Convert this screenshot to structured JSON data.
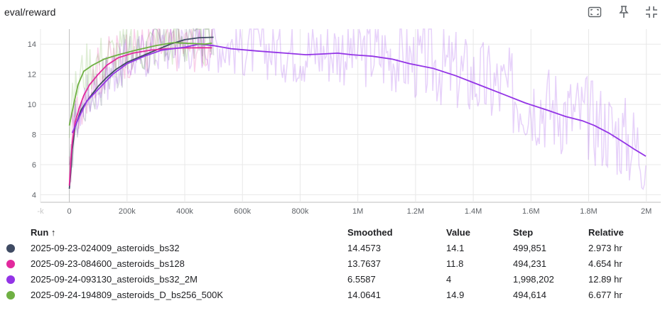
{
  "header": {
    "title": "eval/reward",
    "icons": [
      "fit-domain-icon",
      "pin-icon",
      "collapse-icon"
    ]
  },
  "chart_data": {
    "type": "line",
    "xlim": [
      -100000,
      2050000
    ],
    "ylim": [
      3.5,
      15
    ],
    "x_ticks": [
      -100000,
      0,
      200000,
      400000,
      600000,
      800000,
      1000000,
      1200000,
      1400000,
      1600000,
      1800000,
      2000000
    ],
    "x_tick_labels": [
      "-k",
      "0",
      "200k",
      "400k",
      "600k",
      "800k",
      "1M",
      "1.2M",
      "1.4M",
      "1.6M",
      "1.8M",
      "2M"
    ],
    "y_ticks": [
      4,
      6,
      8,
      10,
      12,
      14
    ],
    "y_tick_labels": [
      "4",
      "6",
      "8",
      "10",
      "12",
      "14"
    ],
    "grid": true,
    "series": [
      {
        "name": "2025-09-23-024009_asteroids_bs32",
        "color": "#3f4b63",
        "smoothed": [
          [
            0,
            4.4
          ],
          [
            5000,
            5.5
          ],
          [
            10000,
            7.0
          ],
          [
            20000,
            8.5
          ],
          [
            40000,
            9.6
          ],
          [
            60000,
            10.2
          ],
          [
            80000,
            10.7
          ],
          [
            100000,
            11.2
          ],
          [
            130000,
            11.8
          ],
          [
            160000,
            12.3
          ],
          [
            200000,
            12.8
          ],
          [
            250000,
            13.2
          ],
          [
            300000,
            13.6
          ],
          [
            350000,
            14.0
          ],
          [
            400000,
            14.3
          ],
          [
            450000,
            14.43
          ],
          [
            499851,
            14.46
          ]
        ]
      },
      {
        "name": "2025-09-23-084600_asteroids_bs128",
        "color": "#e2299d",
        "smoothed": [
          [
            0,
            4.6
          ],
          [
            5000,
            6.2
          ],
          [
            10000,
            7.5
          ],
          [
            20000,
            8.8
          ],
          [
            35000,
            9.8
          ],
          [
            50000,
            10.6
          ],
          [
            70000,
            11.3
          ],
          [
            100000,
            12.0
          ],
          [
            130000,
            12.6
          ],
          [
            170000,
            13.1
          ],
          [
            220000,
            13.4
          ],
          [
            280000,
            13.6
          ],
          [
            340000,
            13.7
          ],
          [
            400000,
            13.75
          ],
          [
            450000,
            13.76
          ],
          [
            494231,
            13.76
          ]
        ]
      },
      {
        "name": "2025-09-24-093130_asteroids_bs32_2M",
        "color": "#9334e6",
        "smoothed": [
          [
            10000,
            8.1
          ],
          [
            30000,
            9.0
          ],
          [
            60000,
            10.2
          ],
          [
            100000,
            11.0
          ],
          [
            150000,
            12.0
          ],
          [
            200000,
            12.7
          ],
          [
            260000,
            13.2
          ],
          [
            320000,
            13.6
          ],
          [
            400000,
            13.8
          ],
          [
            450000,
            14.0
          ],
          [
            500000,
            13.9
          ],
          [
            560000,
            13.7
          ],
          [
            650000,
            13.55
          ],
          [
            750000,
            13.4
          ],
          [
            820000,
            13.3
          ],
          [
            880000,
            13.35
          ],
          [
            930000,
            13.4
          ],
          [
            980000,
            13.3
          ],
          [
            1050000,
            13.2
          ],
          [
            1120000,
            13.0
          ],
          [
            1180000,
            12.7
          ],
          [
            1260000,
            12.4
          ],
          [
            1340000,
            11.9
          ],
          [
            1420000,
            11.3
          ],
          [
            1500000,
            10.7
          ],
          [
            1580000,
            10.1
          ],
          [
            1660000,
            9.6
          ],
          [
            1720000,
            9.2
          ],
          [
            1780000,
            8.9
          ],
          [
            1820000,
            8.6
          ],
          [
            1870000,
            8.1
          ],
          [
            1920000,
            7.5
          ],
          [
            1960000,
            7.0
          ],
          [
            1998202,
            6.56
          ]
        ]
      },
      {
        "name": "2025-09-24-194809_asteroids_D_bs256_500K",
        "color": "#6fb043",
        "smoothed": [
          [
            0,
            8.6
          ],
          [
            15000,
            10.0
          ],
          [
            30000,
            11.3
          ],
          [
            50000,
            12.2
          ],
          [
            80000,
            12.6
          ],
          [
            120000,
            13.0
          ],
          [
            170000,
            13.3
          ],
          [
            230000,
            13.6
          ],
          [
            300000,
            13.9
          ],
          [
            360000,
            14.1
          ],
          [
            420000,
            14.05
          ],
          [
            470000,
            14.0
          ],
          [
            494614,
            14.06
          ]
        ]
      }
    ]
  },
  "table": {
    "headers": {
      "run": "Run",
      "sort_glyph": "↑",
      "smoothed": "Smoothed",
      "value": "Value",
      "step": "Step",
      "relative": "Relative"
    },
    "rows": [
      {
        "run": "2025-09-23-024009_asteroids_bs32",
        "smoothed": "14.4573",
        "value": "14.1",
        "step": "499,851",
        "relative": "2.973 hr"
      },
      {
        "run": "2025-09-23-084600_asteroids_bs128",
        "smoothed": "13.7637",
        "value": "11.8",
        "step": "494,231",
        "relative": "4.654 hr"
      },
      {
        "run": "2025-09-24-093130_asteroids_bs32_2M",
        "smoothed": "6.5587",
        "value": "4",
        "step": "1,998,202",
        "relative": "12.89 hr"
      },
      {
        "run": "2025-09-24-194809_asteroids_D_bs256_500K",
        "smoothed": "14.0641",
        "value": "14.9",
        "step": "494,614",
        "relative": "6.677 hr"
      }
    ]
  }
}
